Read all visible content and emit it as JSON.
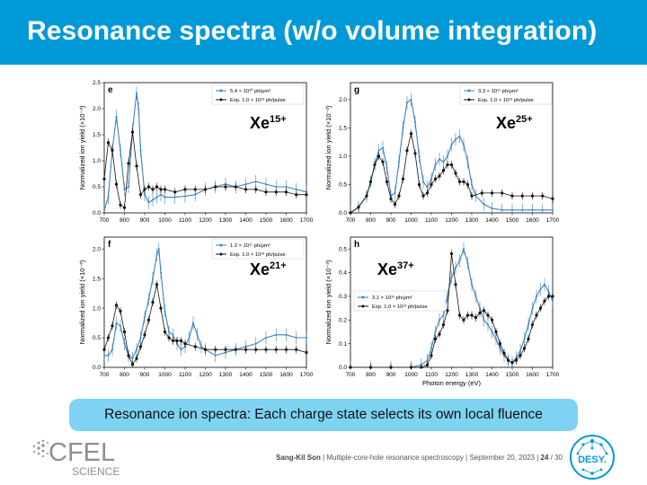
{
  "title": "Resonance spectra (w/o volume integration)",
  "caption": "Resonance ion spectra: Each charge state selects its own local fluence",
  "footer": {
    "author": "Sang-Kil Son",
    "separator": "|",
    "talk": "Multiple-core-hole resonance spectroscopy",
    "date": "September 20, 2023",
    "page": "24",
    "total": "/ 30"
  },
  "logos": {
    "cfel_text": "CFEL",
    "cfel_sub": "SCIENCE",
    "desy_text": "DESY."
  },
  "colors": {
    "header": "#0099d8",
    "caption_bg": "#7fd3f2",
    "theory": "#3a82bf",
    "exp": "#111111",
    "logo_gray": "#8c8f93",
    "desy_blue": "#0099d8"
  },
  "chart_data": [
    {
      "type": "line",
      "panel_label": "e",
      "ion_label": "Xe",
      "ion_charge": "15+",
      "ylabel": "Normalized ion yield (×10⁻³)",
      "xlabel": "",
      "xlim": [
        700,
        1700
      ],
      "ylim": [
        0,
        2.5
      ],
      "xticks": [
        "700",
        "800",
        "900",
        "1000",
        "1100",
        "1200",
        "1300",
        "1400",
        "1500",
        "1600",
        "1700"
      ],
      "yticks": [
        "0.0",
        "0.5",
        "1.0",
        "1.5",
        "2.0",
        "2.5"
      ],
      "legend": [
        "5.4 × 10¹⁰ ph/μm²",
        "Exp. 1.0 × 10¹³ ph/pulse"
      ],
      "legend_pos": "top-right",
      "series": [
        {
          "name": "5.4 × 10¹⁰ ph/μm²",
          "style": "theory",
          "x": [
            700,
            720,
            740,
            760,
            780,
            800,
            820,
            840,
            860,
            870,
            880,
            900,
            920,
            940,
            960,
            980,
            1000,
            1050,
            1100,
            1150,
            1200,
            1250,
            1300,
            1350,
            1400,
            1450,
            1500,
            1550,
            1600,
            1650,
            1700
          ],
          "y": [
            0.05,
            0.3,
            1.2,
            1.85,
            1.2,
            0.45,
            0.5,
            1.6,
            2.3,
            2.0,
            1.2,
            0.35,
            0.2,
            0.25,
            0.3,
            0.35,
            0.3,
            0.3,
            0.32,
            0.35,
            0.45,
            0.5,
            0.55,
            0.5,
            0.55,
            0.6,
            0.55,
            0.5,
            0.5,
            0.45,
            0.4
          ]
        },
        {
          "name": "Exp. 1.0 × 10¹³ ph/pulse",
          "style": "exp",
          "x": [
            700,
            720,
            740,
            760,
            780,
            800,
            820,
            840,
            860,
            880,
            900,
            920,
            940,
            960,
            980,
            1000,
            1050,
            1100,
            1150,
            1200,
            1250,
            1300,
            1350,
            1400,
            1450,
            1500,
            1550,
            1600,
            1650,
            1700
          ],
          "y": [
            0.65,
            1.35,
            1.2,
            0.55,
            0.15,
            0.1,
            0.95,
            1.55,
            0.9,
            0.35,
            0.45,
            0.5,
            0.45,
            0.5,
            0.45,
            0.45,
            0.4,
            0.45,
            0.45,
            0.45,
            0.5,
            0.5,
            0.5,
            0.45,
            0.45,
            0.4,
            0.4,
            0.4,
            0.35,
            0.35
          ]
        }
      ]
    },
    {
      "type": "line",
      "panel_label": "g",
      "ion_label": "Xe",
      "ion_charge": "25+",
      "ylabel": "Normalized ion yield (×10⁻³)",
      "xlabel": "",
      "xlim": [
        700,
        1700
      ],
      "ylim": [
        0,
        2.3
      ],
      "xticks": [
        "700",
        "800",
        "900",
        "1000",
        "1100",
        "1200",
        "1300",
        "1400",
        "1500",
        "1600",
        "1700"
      ],
      "yticks": [
        "0.0",
        "0.5",
        "1.0",
        "1.5",
        "2.0"
      ],
      "legend": [
        "3.3 × 10¹¹ ph/μm²",
        "Exp. 1.0 × 10¹³ ph/pulse"
      ],
      "legend_pos": "top-right",
      "series": [
        {
          "name": "3.3 × 10¹¹ ph/μm²",
          "style": "theory",
          "x": [
            700,
            740,
            780,
            800,
            820,
            840,
            860,
            880,
            900,
            920,
            940,
            960,
            980,
            1000,
            1020,
            1040,
            1060,
            1080,
            1100,
            1120,
            1140,
            1160,
            1180,
            1200,
            1220,
            1240,
            1260,
            1280,
            1300,
            1320,
            1360,
            1400,
            1450,
            1500,
            1550,
            1600,
            1650,
            1700
          ],
          "y": [
            0.0,
            0.1,
            0.3,
            0.55,
            0.85,
            1.1,
            1.15,
            0.8,
            0.3,
            0.35,
            0.9,
            1.5,
            1.95,
            2.0,
            1.6,
            1.0,
            0.55,
            0.45,
            0.6,
            0.85,
            0.95,
            0.9,
            1.0,
            1.2,
            1.3,
            1.35,
            1.2,
            0.9,
            0.5,
            0.3,
            0.15,
            0.08,
            0.05,
            0.05,
            0.05,
            0.05,
            0.05,
            0.05
          ]
        },
        {
          "name": "Exp. 1.0 × 10¹³ ph/pulse",
          "style": "exp",
          "x": [
            700,
            740,
            780,
            800,
            820,
            840,
            860,
            880,
            900,
            920,
            940,
            960,
            980,
            1000,
            1020,
            1040,
            1060,
            1080,
            1100,
            1120,
            1140,
            1160,
            1180,
            1200,
            1220,
            1240,
            1260,
            1280,
            1300,
            1350,
            1400,
            1450,
            1500,
            1550,
            1600,
            1650,
            1700
          ],
          "y": [
            0.0,
            0.1,
            0.3,
            0.55,
            0.85,
            1.0,
            0.9,
            0.55,
            0.25,
            0.15,
            0.3,
            0.6,
            1.1,
            1.4,
            1.05,
            0.5,
            0.3,
            0.35,
            0.5,
            0.6,
            0.65,
            0.75,
            0.85,
            0.85,
            0.7,
            0.55,
            0.55,
            0.5,
            0.3,
            0.35,
            0.35,
            0.35,
            0.3,
            0.3,
            0.3,
            0.3,
            0.25
          ]
        }
      ]
    },
    {
      "type": "line",
      "panel_label": "f",
      "ion_label": "Xe",
      "ion_charge": "21+",
      "ylabel": "Normalized ion yield (×10⁻³)",
      "xlabel": "",
      "xlim": [
        700,
        1700
      ],
      "ylim": [
        0,
        2.2
      ],
      "xticks": [
        "700",
        "800",
        "900",
        "1000",
        "1100",
        "1200",
        "1300",
        "1400",
        "1500",
        "1600",
        "1700"
      ],
      "yticks": [
        "0.0",
        "0.5",
        "1.0",
        "1.5",
        "2.0"
      ],
      "legend": [
        "1.2 × 10¹¹ ph/μm²",
        "Exp. 1.0 × 10¹³ ph/pulse"
      ],
      "legend_pos": "top-right",
      "series": [
        {
          "name": "1.2 × 10¹¹ ph/μm²",
          "style": "theory",
          "x": [
            700,
            720,
            740,
            760,
            780,
            800,
            820,
            840,
            860,
            880,
            900,
            920,
            940,
            960,
            970,
            980,
            1000,
            1020,
            1040,
            1060,
            1080,
            1100,
            1120,
            1140,
            1160,
            1180,
            1200,
            1250,
            1300,
            1350,
            1400,
            1450,
            1500,
            1550,
            1600,
            1650,
            1700
          ],
          "y": [
            0.2,
            0.2,
            0.3,
            0.75,
            0.7,
            0.4,
            0.2,
            0.15,
            0.3,
            0.5,
            0.85,
            1.15,
            1.5,
            1.9,
            2.0,
            1.6,
            0.95,
            0.6,
            0.55,
            0.4,
            0.3,
            0.35,
            0.5,
            0.75,
            0.55,
            0.35,
            0.3,
            0.2,
            0.25,
            0.3,
            0.35,
            0.4,
            0.5,
            0.55,
            0.55,
            0.5,
            0.5
          ]
        },
        {
          "name": "Exp. 1.0 × 10¹³ ph/pulse",
          "style": "exp",
          "x": [
            700,
            720,
            740,
            760,
            780,
            800,
            820,
            840,
            860,
            880,
            900,
            920,
            940,
            960,
            980,
            1000,
            1020,
            1040,
            1060,
            1080,
            1100,
            1150,
            1200,
            1250,
            1300,
            1350,
            1400,
            1450,
            1500,
            1550,
            1600,
            1650,
            1700
          ],
          "y": [
            0.3,
            0.5,
            0.7,
            1.05,
            0.95,
            0.6,
            0.2,
            0.05,
            0.15,
            0.35,
            0.55,
            0.8,
            1.1,
            1.4,
            1.0,
            0.6,
            0.5,
            0.45,
            0.45,
            0.45,
            0.4,
            0.35,
            0.3,
            0.3,
            0.3,
            0.3,
            0.3,
            0.3,
            0.3,
            0.3,
            0.3,
            0.3,
            0.25
          ]
        }
      ]
    },
    {
      "type": "line",
      "panel_label": "h",
      "ion_label": "Xe",
      "ion_charge": "37+",
      "ylabel": "Normalized ion yield (×10⁻³)",
      "xlabel": "Photon energy (eV)",
      "xlim": [
        700,
        1700
      ],
      "ylim": [
        0,
        0.55
      ],
      "xticks": [
        "700",
        "800",
        "900",
        "1000",
        "1100",
        "1200",
        "1300",
        "1400",
        "1500",
        "1600",
        "1700"
      ],
      "yticks": [
        "0.0",
        "0.1",
        "0.2",
        "0.3",
        "0.4",
        "0.5"
      ],
      "legend": [
        "3.1 × 10¹² ph/μm²",
        "Exp. 1.0 × 10¹³ ph/pulse"
      ],
      "legend_pos": "center-left",
      "series": [
        {
          "name": "3.1 × 10¹² ph/μm²",
          "style": "theory",
          "x": [
            700,
            800,
            900,
            1000,
            1050,
            1080,
            1100,
            1120,
            1140,
            1160,
            1180,
            1200,
            1220,
            1240,
            1260,
            1280,
            1300,
            1320,
            1340,
            1360,
            1380,
            1400,
            1420,
            1440,
            1460,
            1480,
            1500,
            1520,
            1540,
            1560,
            1580,
            1600,
            1620,
            1640,
            1660,
            1680,
            1700
          ],
          "y": [
            0.0,
            0.0,
            0.0,
            0.0,
            0.01,
            0.03,
            0.08,
            0.15,
            0.2,
            0.22,
            0.3,
            0.38,
            0.42,
            0.45,
            0.5,
            0.44,
            0.35,
            0.3,
            0.25,
            0.2,
            0.18,
            0.15,
            0.12,
            0.08,
            0.05,
            0.03,
            0.02,
            0.04,
            0.07,
            0.12,
            0.18,
            0.25,
            0.3,
            0.33,
            0.35,
            0.32,
            0.28
          ]
        },
        {
          "name": "Exp. 1.0 × 10¹³ ph/pulse",
          "style": "exp",
          "x": [
            700,
            800,
            900,
            1000,
            1050,
            1080,
            1100,
            1120,
            1140,
            1160,
            1180,
            1200,
            1220,
            1240,
            1260,
            1280,
            1300,
            1320,
            1340,
            1360,
            1380,
            1400,
            1420,
            1440,
            1460,
            1480,
            1500,
            1520,
            1540,
            1560,
            1580,
            1600,
            1620,
            1640,
            1660,
            1680,
            1700
          ],
          "y": [
            0.0,
            0.0,
            0.0,
            0.0,
            0.0,
            0.01,
            0.05,
            0.12,
            0.14,
            0.18,
            0.24,
            0.48,
            0.35,
            0.22,
            0.2,
            0.22,
            0.22,
            0.21,
            0.23,
            0.24,
            0.22,
            0.2,
            0.15,
            0.1,
            0.06,
            0.03,
            0.02,
            0.03,
            0.05,
            0.08,
            0.12,
            0.18,
            0.22,
            0.25,
            0.28,
            0.3,
            0.3
          ]
        }
      ]
    }
  ]
}
